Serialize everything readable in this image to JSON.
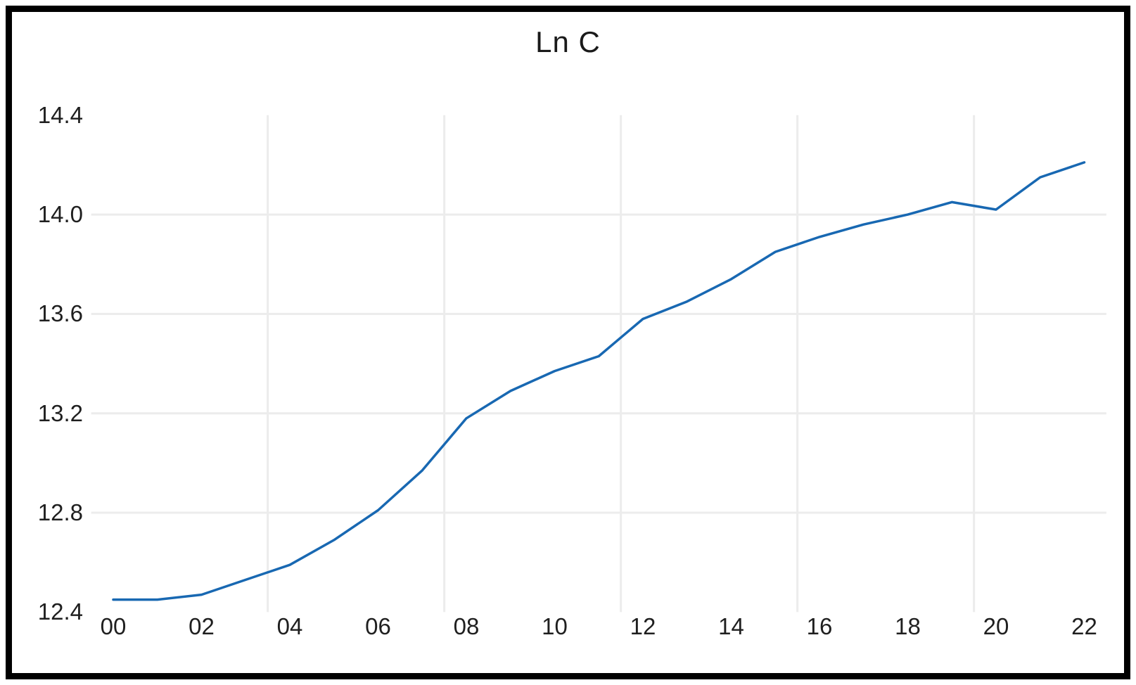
{
  "chart_data": {
    "type": "line",
    "title": "Ln C",
    "x": [
      0,
      1,
      2,
      3,
      4,
      5,
      6,
      7,
      8,
      9,
      10,
      11,
      12,
      13,
      14,
      15,
      16,
      17,
      18,
      19,
      20,
      21,
      22
    ],
    "values": [
      12.45,
      12.45,
      12.47,
      12.53,
      12.59,
      12.69,
      12.81,
      12.97,
      13.18,
      13.29,
      13.37,
      13.43,
      13.58,
      13.65,
      13.74,
      13.85,
      13.91,
      13.96,
      14.0,
      14.05,
      14.02,
      14.15,
      14.21
    ],
    "xlabel": "",
    "ylabel": "",
    "ylim": [
      12.4,
      14.4
    ],
    "xlim_categories": [
      -0.5,
      22.5
    ],
    "legend": "none",
    "grid": "partial",
    "x_ticks": [
      {
        "label": "00",
        "value": 0
      },
      {
        "label": "02",
        "value": 2
      },
      {
        "label": "04",
        "value": 4
      },
      {
        "label": "06",
        "value": 6
      },
      {
        "label": "08",
        "value": 8
      },
      {
        "label": "10",
        "value": 10
      },
      {
        "label": "12",
        "value": 12
      },
      {
        "label": "14",
        "value": 14
      },
      {
        "label": "16",
        "value": 16
      },
      {
        "label": "18",
        "value": 18
      },
      {
        "label": "20",
        "value": 20
      },
      {
        "label": "22",
        "value": 22
      }
    ],
    "y_ticks": [
      {
        "label": "14.4",
        "value": 14.4
      },
      {
        "label": "14.0",
        "value": 14.0
      },
      {
        "label": "13.6",
        "value": 13.6
      },
      {
        "label": "13.2",
        "value": 13.2
      },
      {
        "label": "12.8",
        "value": 12.8
      },
      {
        "label": "12.4",
        "value": 12.4
      }
    ],
    "horizontal_gridlines_at": [
      12.8,
      13.2,
      13.6,
      14.0
    ],
    "vertical_gridlines_at": [
      3.5,
      7.5,
      11.5,
      15.5,
      19.5
    ],
    "colors": {
      "line": "#1868b2",
      "gridline": "#ececec",
      "frame_border": "#000000",
      "text": "#1f1f1f"
    }
  }
}
